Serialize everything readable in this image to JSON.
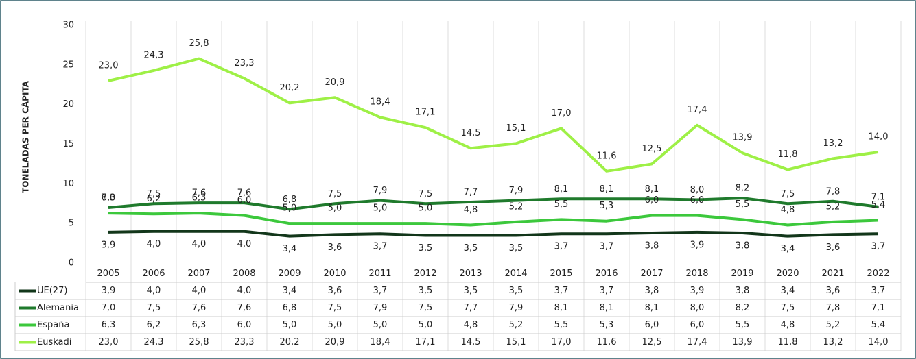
{
  "chart_data": {
    "type": "line",
    "y_label": "TONELADAS PER CÁPITA",
    "categories": [
      "2005",
      "2006",
      "2007",
      "2008",
      "2009",
      "2010",
      "2011",
      "2012",
      "2013",
      "2014",
      "2015",
      "2016",
      "2017",
      "2018",
      "2019",
      "2020",
      "2021",
      "2022"
    ],
    "ylim": [
      0,
      30
    ],
    "yticks": [
      0,
      5,
      10,
      15,
      20,
      25,
      30
    ],
    "grid": false,
    "series": [
      {
        "name": "UE(27)",
        "color": "#12361a",
        "values": [
          3.9,
          4.0,
          4.0,
          4.0,
          3.4,
          3.6,
          3.7,
          3.5,
          3.5,
          3.5,
          3.7,
          3.7,
          3.8,
          3.9,
          3.8,
          3.4,
          3.6,
          3.7
        ],
        "value_labels": [
          "3,9",
          "4,0",
          "4,0",
          "4,0",
          "3,4",
          "3,6",
          "3,7",
          "3,5",
          "3,5",
          "3,5",
          "3,7",
          "3,7",
          "3,8",
          "3,9",
          "3,8",
          "3,4",
          "3,6",
          "3,7"
        ]
      },
      {
        "name": "Alemania",
        "color": "#1f7a2c",
        "values": [
          7.0,
          7.5,
          7.6,
          7.6,
          6.8,
          7.5,
          7.9,
          7.5,
          7.7,
          7.9,
          8.1,
          8.1,
          8.1,
          8.0,
          8.2,
          7.5,
          7.8,
          7.1
        ],
        "value_labels": [
          "7,0",
          "7,5",
          "7,6",
          "7,6",
          "6,8",
          "7,5",
          "7,9",
          "7,5",
          "7,7",
          "7,9",
          "8,1",
          "8,1",
          "8,1",
          "8,0",
          "8,2",
          "7,5",
          "7,8",
          "7,1"
        ]
      },
      {
        "name": "España",
        "color": "#3cc83c",
        "values": [
          6.3,
          6.2,
          6.3,
          6.0,
          5.0,
          5.0,
          5.0,
          5.0,
          4.8,
          5.2,
          5.5,
          5.3,
          6.0,
          6.0,
          5.5,
          4.8,
          5.2,
          5.4
        ],
        "value_labels": [
          "6,3",
          "6,2",
          "6,3",
          "6,0",
          "5,0",
          "5,0",
          "5,0",
          "5,0",
          "4,8",
          "5,2",
          "5,5",
          "5,3",
          "6,0",
          "6,0",
          "5,5",
          "4,8",
          "5,2",
          "5,4"
        ]
      },
      {
        "name": "Euskadi",
        "color": "#9ef046",
        "values": [
          23.0,
          24.3,
          25.8,
          23.3,
          20.2,
          20.9,
          18.4,
          17.1,
          14.5,
          15.1,
          17.0,
          11.6,
          12.5,
          17.4,
          13.9,
          11.8,
          13.2,
          14.0
        ],
        "value_labels": [
          "23,0",
          "24,3",
          "25,8",
          "23,3",
          "20,2",
          "20,9",
          "18,4",
          "17,1",
          "14,5",
          "15,1",
          "17,0",
          "11,6",
          "12,5",
          "17,4",
          "13,9",
          "11,8",
          "13,2",
          "14,0"
        ]
      }
    ]
  }
}
